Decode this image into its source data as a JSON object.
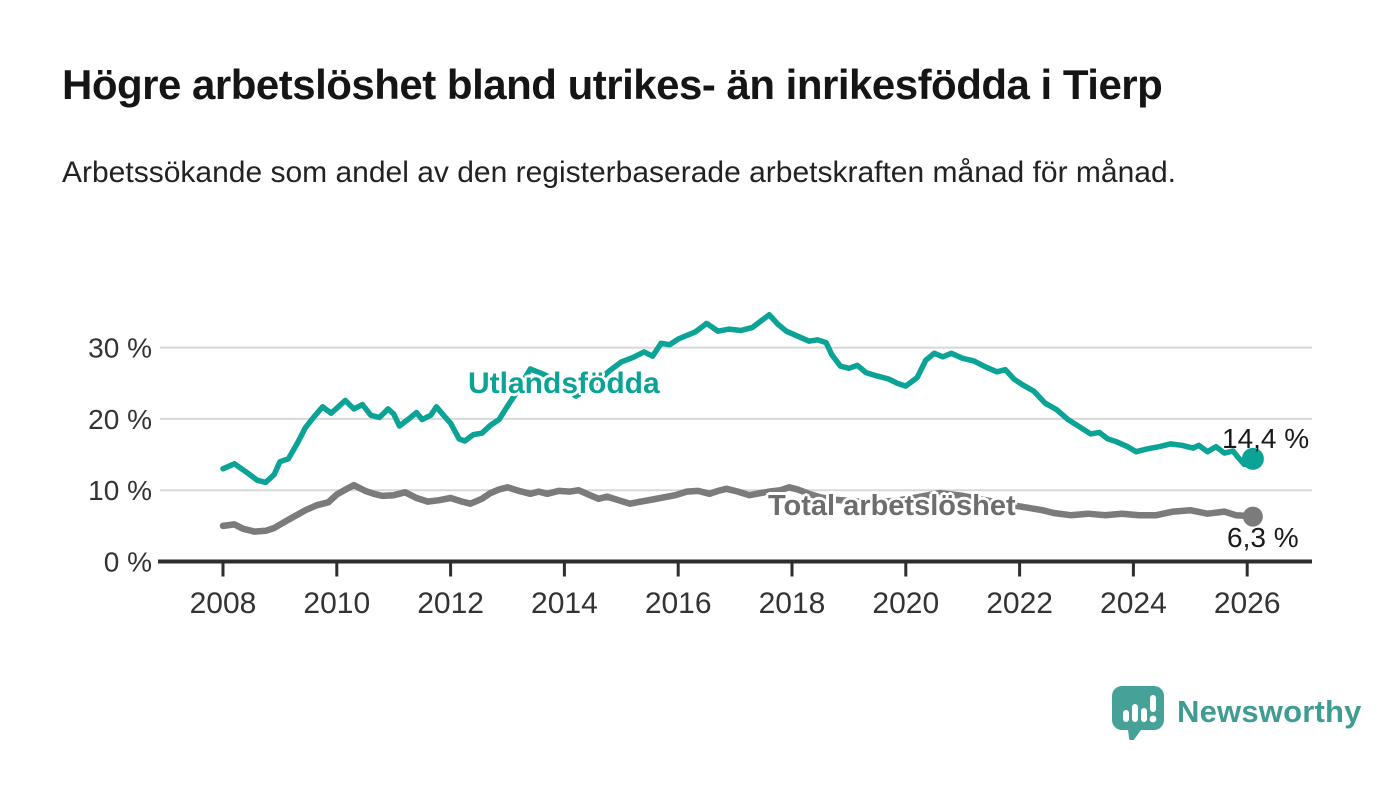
{
  "title": "Högre arbetslöshet bland utrikes- än inrikesfödda i Tierp",
  "subtitle": "Arbetssökande som andel av den registerbaserade arbetskraften månad för månad.",
  "branding": {
    "logo_text": "Newsworthy",
    "logo_icon": "bar-chart-speech-bubble-icon",
    "logo_color": "#3f9c93"
  },
  "chart_data": {
    "type": "line",
    "title": "Högre arbetslöshet bland utrikes- än inrikesfödda i Tierp",
    "xlabel": "",
    "ylabel": "",
    "unit": "%",
    "grid": "horizontal",
    "legend": "inline-series-labels",
    "x_axis": {
      "range": [
        2006.9,
        2027.1
      ],
      "ticks": [
        {
          "value": 2008,
          "label": "2008"
        },
        {
          "value": 2010,
          "label": "2010"
        },
        {
          "value": 2012,
          "label": "2012"
        },
        {
          "value": 2014,
          "label": "2014"
        },
        {
          "value": 2016,
          "label": "2016"
        },
        {
          "value": 2018,
          "label": "2018"
        },
        {
          "value": 2020,
          "label": "2020"
        },
        {
          "value": 2022,
          "label": "2022"
        },
        {
          "value": 2024,
          "label": "2024"
        },
        {
          "value": 2026,
          "label": "2026"
        }
      ]
    },
    "y_axis": {
      "range": [
        0,
        36
      ],
      "ticks": [
        {
          "value": 0,
          "label": "0 %"
        },
        {
          "value": 10,
          "label": "10 %"
        },
        {
          "value": 20,
          "label": "20 %"
        },
        {
          "value": 30,
          "label": "30 %"
        }
      ]
    },
    "series": [
      {
        "name": "Utlandsfödda",
        "color": "#0aa396",
        "end_value": 14.4,
        "end_label": "14,4 %",
        "points": [
          [
            2008.0,
            13.0
          ],
          [
            2008.2,
            13.7
          ],
          [
            2008.4,
            12.6
          ],
          [
            2008.6,
            11.4
          ],
          [
            2008.75,
            11.1
          ],
          [
            2008.9,
            12.2
          ],
          [
            2009.0,
            14.0
          ],
          [
            2009.15,
            14.4
          ],
          [
            2009.3,
            16.5
          ],
          [
            2009.45,
            18.8
          ],
          [
            2009.6,
            20.3
          ],
          [
            2009.75,
            21.7
          ],
          [
            2009.9,
            20.8
          ],
          [
            2010.0,
            21.5
          ],
          [
            2010.15,
            22.6
          ],
          [
            2010.3,
            21.4
          ],
          [
            2010.45,
            22.0
          ],
          [
            2010.6,
            20.5
          ],
          [
            2010.75,
            20.2
          ],
          [
            2010.9,
            21.4
          ],
          [
            2011.0,
            20.7
          ],
          [
            2011.1,
            19.0
          ],
          [
            2011.25,
            19.9
          ],
          [
            2011.4,
            20.9
          ],
          [
            2011.5,
            19.9
          ],
          [
            2011.65,
            20.5
          ],
          [
            2011.75,
            21.7
          ],
          [
            2011.9,
            20.3
          ],
          [
            2012.0,
            19.4
          ],
          [
            2012.15,
            17.2
          ],
          [
            2012.25,
            16.9
          ],
          [
            2012.4,
            17.8
          ],
          [
            2012.55,
            18.0
          ],
          [
            2012.7,
            19.1
          ],
          [
            2012.85,
            19.9
          ],
          [
            2013.0,
            21.8
          ],
          [
            2013.15,
            23.6
          ],
          [
            2013.4,
            27.0
          ],
          [
            2013.65,
            26.2
          ],
          [
            2013.9,
            25.2
          ],
          [
            2014.2,
            23.2
          ],
          [
            2014.5,
            24.6
          ],
          [
            2014.8,
            26.8
          ],
          [
            2015.0,
            28.0
          ],
          [
            2015.2,
            28.6
          ],
          [
            2015.4,
            29.4
          ],
          [
            2015.55,
            28.8
          ],
          [
            2015.7,
            30.6
          ],
          [
            2015.85,
            30.4
          ],
          [
            2016.0,
            31.2
          ],
          [
            2016.3,
            32.2
          ],
          [
            2016.5,
            33.4
          ],
          [
            2016.7,
            32.3
          ],
          [
            2016.9,
            32.6
          ],
          [
            2017.1,
            32.4
          ],
          [
            2017.3,
            32.8
          ],
          [
            2017.5,
            34.0
          ],
          [
            2017.6,
            34.6
          ],
          [
            2017.75,
            33.3
          ],
          [
            2017.9,
            32.3
          ],
          [
            2018.1,
            31.6
          ],
          [
            2018.3,
            30.9
          ],
          [
            2018.45,
            31.1
          ],
          [
            2018.6,
            30.7
          ],
          [
            2018.7,
            29.0
          ],
          [
            2018.85,
            27.4
          ],
          [
            2019.0,
            27.1
          ],
          [
            2019.15,
            27.5
          ],
          [
            2019.3,
            26.5
          ],
          [
            2019.5,
            26.0
          ],
          [
            2019.7,
            25.6
          ],
          [
            2019.85,
            25.0
          ],
          [
            2020.0,
            24.6
          ],
          [
            2020.2,
            25.8
          ],
          [
            2020.35,
            28.2
          ],
          [
            2020.5,
            29.2
          ],
          [
            2020.65,
            28.7
          ],
          [
            2020.8,
            29.2
          ],
          [
            2021.0,
            28.5
          ],
          [
            2021.2,
            28.1
          ],
          [
            2021.4,
            27.3
          ],
          [
            2021.6,
            26.6
          ],
          [
            2021.75,
            26.9
          ],
          [
            2021.9,
            25.6
          ],
          [
            2022.05,
            24.8
          ],
          [
            2022.25,
            23.9
          ],
          [
            2022.45,
            22.2
          ],
          [
            2022.65,
            21.3
          ],
          [
            2022.85,
            19.9
          ],
          [
            2023.05,
            18.9
          ],
          [
            2023.25,
            17.9
          ],
          [
            2023.4,
            18.1
          ],
          [
            2023.55,
            17.2
          ],
          [
            2023.7,
            16.8
          ],
          [
            2023.9,
            16.1
          ],
          [
            2024.05,
            15.4
          ],
          [
            2024.25,
            15.8
          ],
          [
            2024.45,
            16.1
          ],
          [
            2024.65,
            16.5
          ],
          [
            2024.85,
            16.3
          ],
          [
            2025.05,
            15.9
          ],
          [
            2025.15,
            16.3
          ],
          [
            2025.3,
            15.4
          ],
          [
            2025.45,
            16.1
          ],
          [
            2025.6,
            15.2
          ],
          [
            2025.75,
            15.5
          ],
          [
            2025.85,
            14.5
          ],
          [
            2025.95,
            13.6
          ],
          [
            2026.0,
            14.0
          ],
          [
            2026.1,
            14.4
          ]
        ]
      },
      {
        "name": "Total arbetslöshet",
        "color": "#7b7b7b",
        "end_value": 6.3,
        "end_label": "6,3 %",
        "points": [
          [
            2008.0,
            5.0
          ],
          [
            2008.2,
            5.2
          ],
          [
            2008.35,
            4.6
          ],
          [
            2008.55,
            4.2
          ],
          [
            2008.75,
            4.3
          ],
          [
            2008.9,
            4.7
          ],
          [
            2009.05,
            5.4
          ],
          [
            2009.25,
            6.3
          ],
          [
            2009.45,
            7.2
          ],
          [
            2009.65,
            7.9
          ],
          [
            2009.85,
            8.3
          ],
          [
            2010.0,
            9.4
          ],
          [
            2010.2,
            10.3
          ],
          [
            2010.3,
            10.7
          ],
          [
            2010.5,
            9.9
          ],
          [
            2010.65,
            9.5
          ],
          [
            2010.8,
            9.2
          ],
          [
            2011.0,
            9.3
          ],
          [
            2011.2,
            9.7
          ],
          [
            2011.4,
            8.9
          ],
          [
            2011.6,
            8.4
          ],
          [
            2011.8,
            8.6
          ],
          [
            2012.0,
            8.9
          ],
          [
            2012.2,
            8.4
          ],
          [
            2012.35,
            8.1
          ],
          [
            2012.55,
            8.8
          ],
          [
            2012.7,
            9.6
          ],
          [
            2012.85,
            10.1
          ],
          [
            2013.0,
            10.4
          ],
          [
            2013.2,
            9.9
          ],
          [
            2013.4,
            9.5
          ],
          [
            2013.55,
            9.8
          ],
          [
            2013.7,
            9.5
          ],
          [
            2013.9,
            9.9
          ],
          [
            2014.1,
            9.8
          ],
          [
            2014.25,
            10.0
          ],
          [
            2014.45,
            9.3
          ],
          [
            2014.6,
            8.8
          ],
          [
            2014.75,
            9.1
          ],
          [
            2014.95,
            8.6
          ],
          [
            2015.15,
            8.1
          ],
          [
            2015.35,
            8.4
          ],
          [
            2015.55,
            8.7
          ],
          [
            2015.75,
            9.0
          ],
          [
            2015.95,
            9.3
          ],
          [
            2016.15,
            9.8
          ],
          [
            2016.35,
            9.9
          ],
          [
            2016.55,
            9.5
          ],
          [
            2016.7,
            9.9
          ],
          [
            2016.85,
            10.2
          ],
          [
            2017.05,
            9.8
          ],
          [
            2017.25,
            9.3
          ],
          [
            2017.45,
            9.6
          ],
          [
            2017.6,
            9.8
          ],
          [
            2017.8,
            10.0
          ],
          [
            2017.95,
            10.4
          ],
          [
            2018.1,
            10.1
          ],
          [
            2018.3,
            9.5
          ],
          [
            2018.5,
            9.0
          ],
          [
            2018.7,
            8.7
          ],
          [
            2019.0,
            8.5
          ],
          [
            2019.4,
            8.3
          ],
          [
            2019.8,
            8.5
          ],
          [
            2020.2,
            9.0
          ],
          [
            2020.6,
            9.6
          ],
          [
            2021.0,
            9.2
          ],
          [
            2021.4,
            8.6
          ],
          [
            2021.8,
            8.0
          ],
          [
            2022.1,
            7.6
          ],
          [
            2022.4,
            7.2
          ],
          [
            2022.6,
            6.8
          ],
          [
            2022.9,
            6.5
          ],
          [
            2023.2,
            6.7
          ],
          [
            2023.5,
            6.5
          ],
          [
            2023.8,
            6.7
          ],
          [
            2024.1,
            6.5
          ],
          [
            2024.4,
            6.5
          ],
          [
            2024.7,
            7.0
          ],
          [
            2025.0,
            7.2
          ],
          [
            2025.3,
            6.7
          ],
          [
            2025.6,
            7.0
          ],
          [
            2025.8,
            6.5
          ],
          [
            2026.0,
            6.4
          ],
          [
            2026.1,
            6.3
          ]
        ]
      }
    ]
  }
}
